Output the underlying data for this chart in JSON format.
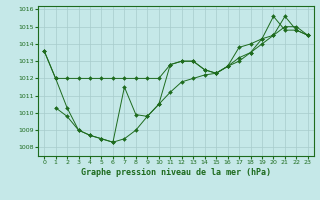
{
  "title": "Graphe pression niveau de la mer (hPa)",
  "bg_color": "#c5e8e8",
  "line_color": "#1e6b1e",
  "grid_color": "#a8cccc",
  "xlim": [
    -0.5,
    23.5
  ],
  "ylim": [
    1007.5,
    1016.2
  ],
  "xticks": [
    0,
    1,
    2,
    3,
    4,
    5,
    6,
    7,
    8,
    9,
    10,
    11,
    12,
    13,
    14,
    15,
    16,
    17,
    18,
    19,
    20,
    21,
    22,
    23
  ],
  "yticks": [
    1008,
    1009,
    1010,
    1011,
    1012,
    1013,
    1014,
    1015,
    1016
  ],
  "series1_x": [
    0,
    1,
    2,
    3,
    4,
    5,
    6,
    7,
    8,
    9,
    10,
    11,
    12,
    13,
    14,
    15,
    16,
    17,
    18,
    19,
    20,
    21,
    22,
    23
  ],
  "series1_y": [
    1013.6,
    1012.0,
    1012.0,
    1012.0,
    1012.0,
    1012.0,
    1012.0,
    1012.0,
    1012.0,
    1012.0,
    1012.0,
    1012.8,
    1013.0,
    1013.0,
    1012.5,
    1012.3,
    1012.7,
    1013.2,
    1013.5,
    1014.3,
    1014.5,
    1015.0,
    1015.0,
    1014.5
  ],
  "series2_x": [
    1,
    2,
    3,
    4,
    5,
    6,
    7,
    8,
    9,
    10,
    11,
    12,
    13,
    14,
    15,
    16,
    17,
    18,
    19,
    20,
    21,
    22,
    23
  ],
  "series2_y": [
    1010.3,
    1009.8,
    1009.0,
    1008.7,
    1008.5,
    1008.3,
    1008.5,
    1009.0,
    1009.8,
    1010.5,
    1011.2,
    1011.8,
    1012.0,
    1012.2,
    1012.3,
    1012.7,
    1013.0,
    1013.5,
    1014.0,
    1014.5,
    1015.6,
    1014.8,
    1014.5
  ],
  "series3_x": [
    0,
    1,
    2,
    3,
    4,
    5,
    6,
    7,
    8,
    9,
    10,
    11,
    12,
    13,
    14,
    15,
    16,
    17,
    18,
    19,
    20,
    21,
    22,
    23
  ],
  "series3_y": [
    1013.6,
    1012.0,
    1010.3,
    1009.0,
    1008.7,
    1008.5,
    1008.3,
    1011.5,
    1009.9,
    1009.8,
    1010.5,
    1012.8,
    1013.0,
    1013.0,
    1012.5,
    1012.3,
    1012.7,
    1013.8,
    1014.0,
    1014.3,
    1015.6,
    1014.8,
    1014.8,
    1014.5
  ]
}
